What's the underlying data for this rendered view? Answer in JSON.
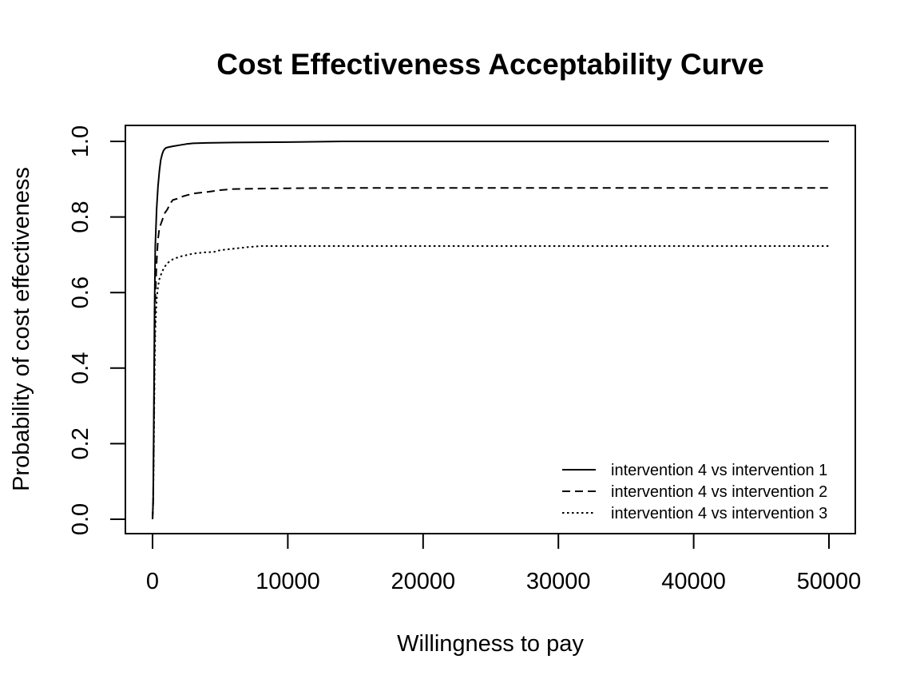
{
  "chart_data": {
    "type": "line",
    "title": "Cost Effectiveness Acceptability Curve",
    "xlabel": "Willingness to pay",
    "ylabel": "Probability of cost effectiveness",
    "xlim": [
      -2000,
      52000
    ],
    "ylim": [
      -0.04,
      1.04
    ],
    "x_ticks": [
      0,
      10000,
      20000,
      30000,
      40000,
      50000
    ],
    "x_tick_labels": [
      "0",
      "10000",
      "20000",
      "30000",
      "40000",
      "50000"
    ],
    "y_ticks": [
      0.0,
      0.2,
      0.4,
      0.6,
      0.8,
      1.0
    ],
    "y_tick_labels": [
      "0.0",
      "0.2",
      "0.4",
      "0.6",
      "0.8",
      "1.0"
    ],
    "grid": false,
    "legend_position": "bottom-right",
    "series": [
      {
        "name": "intervention 4 vs intervention 1",
        "line_style": "solid",
        "x": [
          0,
          50,
          100,
          150,
          200,
          300,
          400,
          500,
          600,
          700,
          800,
          900,
          1000,
          1200,
          1500,
          2000,
          2500,
          3000,
          4000,
          6000,
          10000,
          14000,
          20000,
          30000,
          40000,
          50000
        ],
        "y": [
          0.0,
          0.05,
          0.3,
          0.55,
          0.72,
          0.82,
          0.88,
          0.92,
          0.95,
          0.965,
          0.975,
          0.98,
          0.983,
          0.985,
          0.987,
          0.99,
          0.993,
          0.995,
          0.996,
          0.997,
          0.998,
          1.0,
          1.0,
          1.0,
          1.0,
          1.0
        ]
      },
      {
        "name": "intervention 4 vs intervention 2",
        "line_style": "dashed",
        "x": [
          0,
          50,
          100,
          150,
          200,
          300,
          400,
          500,
          700,
          900,
          1100,
          1300,
          1500,
          1800,
          2000,
          2500,
          3000,
          4000,
          5000,
          6000,
          8000,
          10000,
          14000,
          20000,
          30000,
          40000,
          50000
        ],
        "y": [
          0.0,
          0.05,
          0.25,
          0.45,
          0.58,
          0.68,
          0.74,
          0.77,
          0.79,
          0.81,
          0.82,
          0.835,
          0.845,
          0.848,
          0.852,
          0.857,
          0.862,
          0.866,
          0.871,
          0.874,
          0.875,
          0.876,
          0.877,
          0.877,
          0.877,
          0.877,
          0.877
        ]
      },
      {
        "name": "intervention 4 vs intervention 3",
        "line_style": "dotted",
        "x": [
          0,
          50,
          100,
          150,
          200,
          300,
          400,
          500,
          700,
          900,
          1100,
          1500,
          2000,
          2500,
          3000,
          4000,
          4500,
          5000,
          6000,
          7000,
          8000,
          10000,
          14000,
          20000,
          30000,
          40000,
          50000
        ],
        "y": [
          0.0,
          0.05,
          0.2,
          0.38,
          0.5,
          0.58,
          0.615,
          0.635,
          0.655,
          0.668,
          0.678,
          0.688,
          0.695,
          0.699,
          0.703,
          0.707,
          0.707,
          0.712,
          0.716,
          0.72,
          0.723,
          0.723,
          0.723,
          0.723,
          0.723,
          0.723,
          0.723
        ]
      }
    ]
  }
}
